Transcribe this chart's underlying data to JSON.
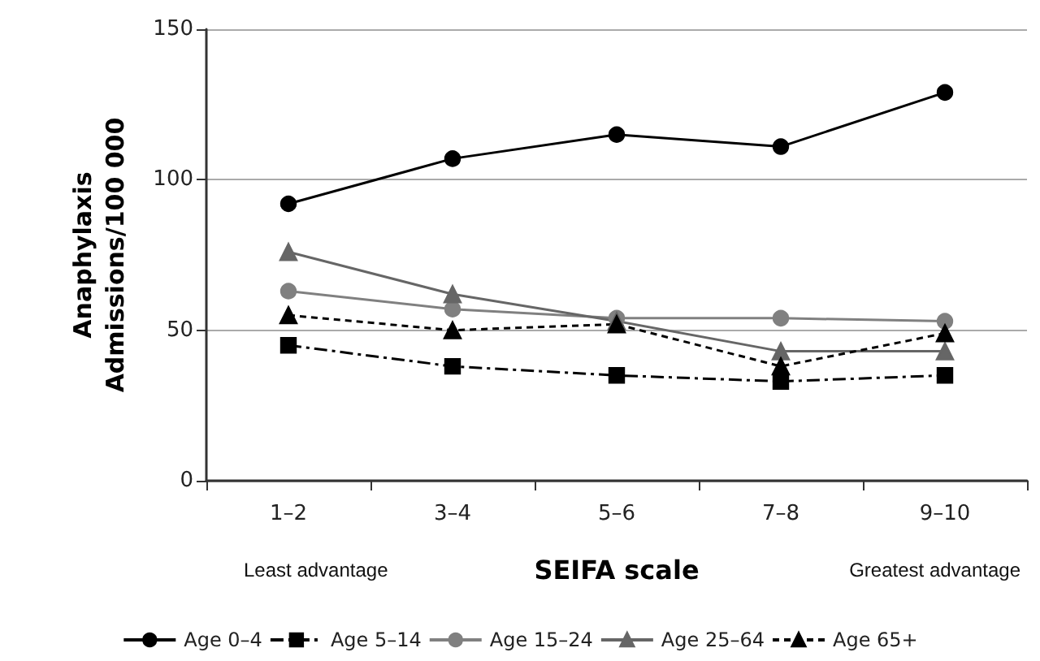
{
  "chart_data": {
    "type": "line",
    "xlabel": "SEIFA scale",
    "ylabel": "Anaphylaxis\nAdmissions/100 000",
    "categories": [
      "1–2",
      "3–4",
      "5–6",
      "7–8",
      "9–10"
    ],
    "series": [
      {
        "name": "Age 0–4",
        "color": "#000000",
        "marker": "circle",
        "line_style": "solid",
        "values": [
          92,
          107,
          115,
          111,
          129
        ]
      },
      {
        "name": "Age 5–14",
        "color": "#000000",
        "marker": "square",
        "line_style": "dashdot",
        "values": [
          45,
          38,
          35,
          33,
          35
        ]
      },
      {
        "name": "Age 15–24",
        "color": "#808080",
        "marker": "circle",
        "line_style": "solid",
        "values": [
          63,
          57,
          54,
          54,
          53
        ]
      },
      {
        "name": "Age 25–64",
        "color": "#666666",
        "marker": "triangle",
        "line_style": "solid",
        "values": [
          76,
          62,
          53,
          43,
          43
        ]
      },
      {
        "name": "Age 65+",
        "color": "#000000",
        "marker": "triangle",
        "line_style": "dashed",
        "values": [
          55,
          50,
          52,
          38,
          49
        ]
      }
    ],
    "ylim": [
      0,
      150
    ],
    "yticks": [
      0,
      50,
      100,
      150
    ],
    "grid": "y",
    "legend": "bottom",
    "annotations": [
      "Least advantage",
      "Greatest advantage"
    ]
  }
}
